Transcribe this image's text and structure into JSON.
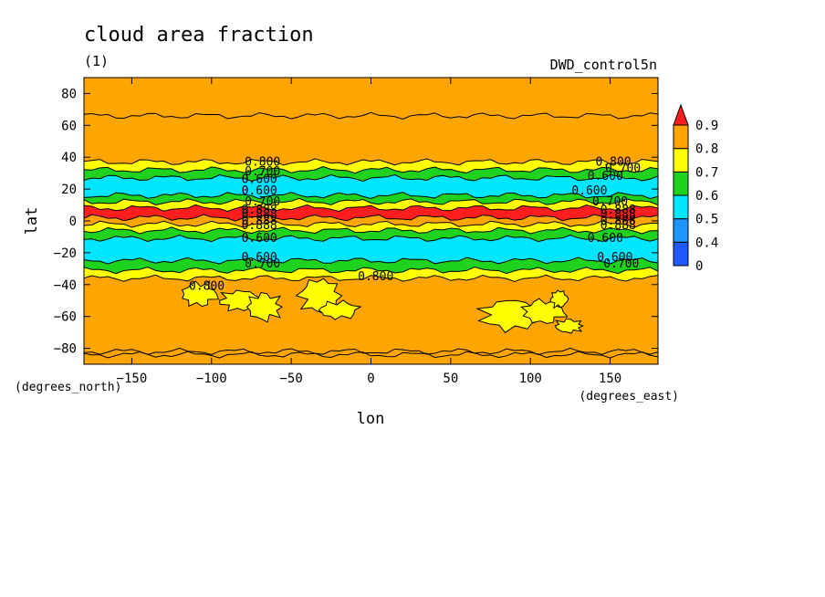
{
  "chart_data": {
    "type": "contour-map",
    "title": "cloud area fraction",
    "units": "(1)",
    "run_label": "DWD_control5n",
    "xlabel": "lon",
    "ylabel": "lat",
    "x_unit": "(degrees_east)",
    "y_unit": "(degrees_north)",
    "xlim": [
      -180,
      180
    ],
    "ylim": [
      -90,
      90
    ],
    "x_ticks": [
      -150,
      -100,
      -50,
      0,
      50,
      100,
      150
    ],
    "y_ticks": [
      -80,
      -60,
      -40,
      -20,
      0,
      20,
      40,
      60,
      80
    ],
    "levels": [
      0,
      0.4,
      0.5,
      0.6,
      0.7,
      0.8,
      0.9
    ],
    "level_labels": [
      "0",
      "0.4",
      "0.5",
      "0.6",
      "0.7",
      "0.8",
      "0.9"
    ],
    "colors": [
      "#1e5aff",
      "#1e96ff",
      "#00e6ff",
      "#1ed21e",
      "#ffff00",
      "#ffa500",
      "#ff1e1e"
    ],
    "bands": [
      {
        "lat_min": -90,
        "lat_max": -36,
        "level": 0.85
      },
      {
        "lat_min": -36,
        "lat_max": -31,
        "level": 0.75
      },
      {
        "lat_min": -31,
        "lat_max": -25,
        "level": 0.65
      },
      {
        "lat_min": -25,
        "lat_max": -11,
        "level": 0.55
      },
      {
        "lat_min": -11,
        "lat_max": -6,
        "level": 0.65
      },
      {
        "lat_min": -6,
        "lat_max": -2,
        "level": 0.75
      },
      {
        "lat_min": -2,
        "lat_max": 2,
        "level": 0.85
      },
      {
        "lat_min": 2,
        "lat_max": 8,
        "level": 0.95
      },
      {
        "lat_min": 8,
        "lat_max": 12,
        "level": 0.75
      },
      {
        "lat_min": 12,
        "lat_max": 16,
        "level": 0.65
      },
      {
        "lat_min": 16,
        "lat_max": 27,
        "level": 0.55
      },
      {
        "lat_min": 27,
        "lat_max": 32,
        "level": 0.65
      },
      {
        "lat_min": 32,
        "lat_max": 37,
        "level": 0.75
      },
      {
        "lat_min": 37,
        "lat_max": 90,
        "level": 0.85
      }
    ],
    "contour_labels": [
      {
        "text": "0.800",
        "lon": -68,
        "lat": 37
      },
      {
        "text": "0.700",
        "lon": -68,
        "lat": 31
      },
      {
        "text": "0.600",
        "lon": -70,
        "lat": 26
      },
      {
        "text": "0.600",
        "lon": -70,
        "lat": 19
      },
      {
        "text": "0.700",
        "lon": -68,
        "lat": 12
      },
      {
        "text": "0.888",
        "lon": -70,
        "lat": 7
      },
      {
        "text": "0.888",
        "lon": -70,
        "lat": 4
      },
      {
        "text": "0.888",
        "lon": -70,
        "lat": 0
      },
      {
        "text": "0.888",
        "lon": -70,
        "lat": -3
      },
      {
        "text": "0.600",
        "lon": -70,
        "lat": -11
      },
      {
        "text": "0.600",
        "lon": -70,
        "lat": -23
      },
      {
        "text": "0.700",
        "lon": -68,
        "lat": -27
      },
      {
        "text": "0.800",
        "lon": 3,
        "lat": -35
      },
      {
        "text": "0.800",
        "lon": -103,
        "lat": -41
      },
      {
        "text": "0.800",
        "lon": 152,
        "lat": 37
      },
      {
        "text": "0.700",
        "lon": 158,
        "lat": 33
      },
      {
        "text": "0.600",
        "lon": 147,
        "lat": 28
      },
      {
        "text": "0.600",
        "lon": 137,
        "lat": 19
      },
      {
        "text": "0.700",
        "lon": 150,
        "lat": 12
      },
      {
        "text": "0.888",
        "lon": 155,
        "lat": 7
      },
      {
        "text": "0.888",
        "lon": 155,
        "lat": 4
      },
      {
        "text": "0.888",
        "lon": 155,
        "lat": 0
      },
      {
        "text": "0.888",
        "lon": 155,
        "lat": -3
      },
      {
        "text": "0.600",
        "lon": 147,
        "lat": -11
      },
      {
        "text": "0.600",
        "lon": 153,
        "lat": -23
      },
      {
        "text": "0.700",
        "lon": 157,
        "lat": -27
      }
    ],
    "yellow_patches": [
      {
        "lon": -108,
        "lat": -46,
        "rlon": 10,
        "rlat": 7
      },
      {
        "lon": -82,
        "lat": -50,
        "rlon": 12,
        "rlat": 6
      },
      {
        "lon": -67,
        "lat": -54,
        "rlon": 10,
        "rlat": 8
      },
      {
        "lon": -32,
        "lat": -47,
        "rlon": 12,
        "rlat": 10
      },
      {
        "lon": -20,
        "lat": -56,
        "rlon": 12,
        "rlat": 5
      },
      {
        "lon": 88,
        "lat": -59,
        "rlon": 18,
        "rlat": 9
      },
      {
        "lon": 108,
        "lat": -57,
        "rlon": 12,
        "rlat": 7
      },
      {
        "lon": 118,
        "lat": -49,
        "rlon": 5,
        "rlat": 5
      },
      {
        "lon": 124,
        "lat": -66,
        "rlon": 8,
        "rlat": 4
      }
    ]
  }
}
